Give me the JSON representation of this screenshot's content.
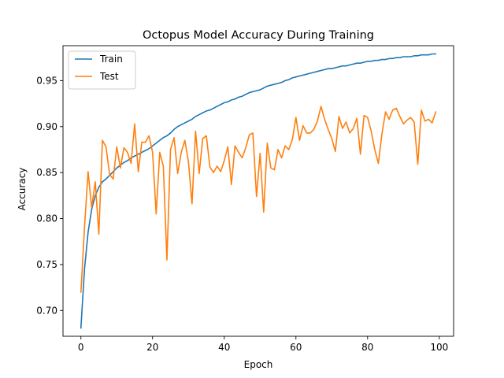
{
  "chart_data": {
    "type": "line",
    "title": "Octopus Model Accuracy During Training",
    "xlabel": "Epoch",
    "ylabel": "Accuracy",
    "xlim": [
      -5,
      104
    ],
    "ylim": [
      0.672,
      0.988
    ],
    "xticks": [
      0,
      20,
      40,
      60,
      80,
      100
    ],
    "xtick_labels": [
      "0",
      "20",
      "40",
      "60",
      "80",
      "100"
    ],
    "yticks": [
      0.7,
      0.75,
      0.8,
      0.85,
      0.9,
      0.95
    ],
    "ytick_labels": [
      "0.70",
      "0.75",
      "0.80",
      "0.85",
      "0.90",
      "0.95"
    ],
    "grid": false,
    "legend_position": "top-left",
    "x": [
      0,
      1,
      2,
      3,
      4,
      5,
      6,
      7,
      8,
      9,
      10,
      11,
      12,
      13,
      14,
      15,
      16,
      17,
      18,
      19,
      20,
      21,
      22,
      23,
      24,
      25,
      26,
      27,
      28,
      29,
      30,
      31,
      32,
      33,
      34,
      35,
      36,
      37,
      38,
      39,
      40,
      41,
      42,
      43,
      44,
      45,
      46,
      47,
      48,
      49,
      50,
      51,
      52,
      53,
      54,
      55,
      56,
      57,
      58,
      59,
      60,
      61,
      62,
      63,
      64,
      65,
      66,
      67,
      68,
      69,
      70,
      71,
      72,
      73,
      74,
      75,
      76,
      77,
      78,
      79,
      80,
      81,
      82,
      83,
      84,
      85,
      86,
      87,
      88,
      89,
      90,
      91,
      92,
      93,
      94,
      95,
      96,
      97,
      98,
      99
    ],
    "series": [
      {
        "name": "Train",
        "color": "#1f77b4",
        "values": [
          0.681,
          0.745,
          0.785,
          0.81,
          0.825,
          0.834,
          0.84,
          0.843,
          0.847,
          0.851,
          0.855,
          0.858,
          0.861,
          0.863,
          0.866,
          0.868,
          0.87,
          0.872,
          0.874,
          0.876,
          0.879,
          0.882,
          0.885,
          0.888,
          0.89,
          0.893,
          0.897,
          0.9,
          0.902,
          0.904,
          0.906,
          0.908,
          0.911,
          0.913,
          0.915,
          0.917,
          0.918,
          0.92,
          0.922,
          0.924,
          0.926,
          0.927,
          0.929,
          0.93,
          0.932,
          0.933,
          0.935,
          0.937,
          0.938,
          0.939,
          0.94,
          0.942,
          0.944,
          0.945,
          0.946,
          0.947,
          0.948,
          0.95,
          0.951,
          0.953,
          0.954,
          0.955,
          0.956,
          0.957,
          0.958,
          0.959,
          0.96,
          0.961,
          0.962,
          0.963,
          0.963,
          0.964,
          0.965,
          0.966,
          0.966,
          0.967,
          0.968,
          0.969,
          0.969,
          0.97,
          0.971,
          0.971,
          0.972,
          0.972,
          0.973,
          0.973,
          0.974,
          0.974,
          0.975,
          0.975,
          0.976,
          0.976,
          0.976,
          0.977,
          0.977,
          0.978,
          0.978,
          0.978,
          0.979,
          0.979
        ]
      },
      {
        "name": "Test",
        "color": "#ff7f0e",
        "values": [
          0.72,
          0.79,
          0.851,
          0.812,
          0.84,
          0.783,
          0.885,
          0.878,
          0.848,
          0.843,
          0.878,
          0.855,
          0.877,
          0.872,
          0.86,
          0.903,
          0.851,
          0.883,
          0.883,
          0.89,
          0.872,
          0.805,
          0.872,
          0.857,
          0.755,
          0.875,
          0.888,
          0.849,
          0.872,
          0.885,
          0.862,
          0.816,
          0.895,
          0.849,
          0.887,
          0.89,
          0.856,
          0.85,
          0.857,
          0.851,
          0.863,
          0.878,
          0.837,
          0.879,
          0.872,
          0.866,
          0.877,
          0.891,
          0.893,
          0.824,
          0.871,
          0.807,
          0.882,
          0.855,
          0.853,
          0.875,
          0.866,
          0.879,
          0.875,
          0.886,
          0.91,
          0.885,
          0.901,
          0.893,
          0.893,
          0.897,
          0.906,
          0.922,
          0.908,
          0.897,
          0.887,
          0.873,
          0.911,
          0.898,
          0.905,
          0.893,
          0.898,
          0.909,
          0.87,
          0.912,
          0.91,
          0.895,
          0.875,
          0.86,
          0.892,
          0.916,
          0.908,
          0.918,
          0.92,
          0.911,
          0.903,
          0.907,
          0.91,
          0.905,
          0.859,
          0.918,
          0.906,
          0.908,
          0.904,
          0.916
        ]
      }
    ]
  }
}
